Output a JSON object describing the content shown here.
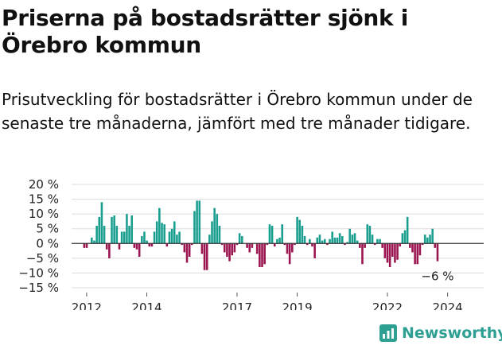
{
  "header": {
    "title": "Priserna på bostadsrätter sjönk i Örebro kommun",
    "subtitle": "Prisutveckling för bostadsrätter i Örebro kommun under de senaste tre månaderna, jämfört med tre månader tidigare."
  },
  "branding": {
    "name": "Newsworthy",
    "icon": "chart-bars-icon",
    "color": "#2d9f93"
  },
  "colors": {
    "positive": "#1a9e8f",
    "negative": "#9b1550",
    "grid": "#dddddd",
    "zero_line": "#333333"
  },
  "chart_data": {
    "type": "bar",
    "title": "",
    "xlabel": "",
    "ylabel": "",
    "ylim": [
      -15,
      20
    ],
    "yticks": [
      20,
      15,
      10,
      5,
      0,
      -5,
      -10,
      -15
    ],
    "ytick_labels": [
      "20 %",
      "15 %",
      "10 %",
      "5 %",
      "0 %",
      "−5 %",
      "−10 %",
      "−15 %"
    ],
    "xlim": [
      2011.5,
      2025.2
    ],
    "xticks": [
      2012,
      2014,
      2017,
      2019,
      2022,
      2024
    ],
    "xtick_labels": [
      "2012",
      "2014",
      "2017",
      "2019",
      "2022",
      "2024"
    ],
    "grid": true,
    "annotation": {
      "text": "−6 %",
      "anchor": "last-bar"
    },
    "series": [
      {
        "start": 2011.92,
        "step": 0.0833,
        "values": [
          -1.5,
          -1.5,
          0,
          2,
          1,
          6,
          9,
          14,
          6,
          -2,
          -5,
          9,
          9.5,
          6,
          -2,
          4,
          4,
          10,
          6,
          9.5,
          -1.5,
          -2,
          -4.5,
          2.5,
          4,
          1,
          -1,
          -1,
          4,
          7.5,
          12,
          7,
          6.5,
          -1,
          4,
          5,
          7.5,
          3,
          4,
          -0.5,
          -3,
          -6.5,
          -4.5,
          -0.5,
          11,
          14.5,
          14.5,
          -3.5,
          -9,
          -9,
          3,
          7.5,
          12,
          10,
          6,
          -0.5,
          -3,
          -4.5,
          -6,
          -4,
          -3,
          -0.5,
          3.5,
          2.5,
          0,
          -1.5,
          -3,
          -1.5,
          0,
          -3.5,
          -8,
          -8,
          -7,
          -0.5,
          6.5,
          6,
          -1,
          1.5,
          2,
          6.5,
          -0.5,
          -3.5,
          -7,
          -3,
          -0.5,
          9,
          8,
          6,
          2.5,
          -0.5,
          1.5,
          -1,
          -5,
          2,
          3,
          1,
          1.5,
          -0.5,
          1.5,
          4,
          2,
          2,
          3.5,
          2.5,
          -0.5,
          0.5,
          5,
          3,
          3.5,
          1,
          -1.5,
          -7,
          -1.5,
          6.5,
          6,
          3,
          -0.5,
          1.5,
          1.5,
          -1.5,
          -5,
          -6.5,
          -8,
          -4.5,
          -6.5,
          -5.5,
          -1,
          3.5,
          4.5,
          9,
          -1.5,
          -3,
          -7,
          -7,
          -4,
          -0.5,
          3,
          2,
          3,
          5,
          -1.5,
          -6
        ]
      }
    ]
  }
}
